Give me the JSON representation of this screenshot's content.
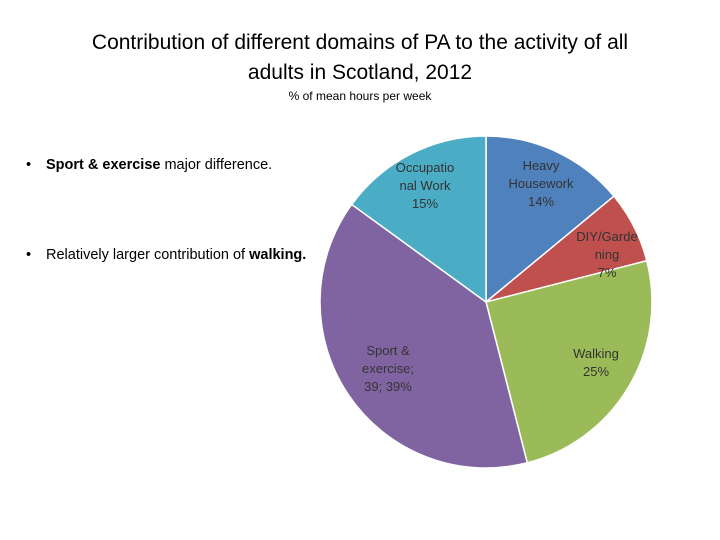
{
  "chart_data": {
    "type": "pie",
    "title": "Contribution of different domains of PA to the activity of all\nadults in Scotland, 2012",
    "subtitle": "% of mean hours per week",
    "categories": [
      "Heavy\nHousework",
      "DIY/Garde\nning",
      "Walking",
      "Sport &\nexercise;",
      "Occupatio\nnal Work"
    ],
    "values": [
      14,
      7,
      25,
      39,
      15
    ],
    "value_labels": [
      "14%",
      "7%",
      "25%",
      "39; 39%",
      "15%"
    ],
    "colors": [
      "#4f81bd",
      "#c0504d",
      "#9bbb59",
      "#8064a2",
      "#4bacc6"
    ]
  },
  "bullets": [
    [
      {
        "text": "Sport & exercise",
        "bold": true
      },
      {
        "text": " major difference.",
        "bold": false
      }
    ],
    [
      {
        "text": "Relatively larger contribution of ",
        "bold": false
      },
      {
        "text": "walking.",
        "bold": true
      }
    ]
  ]
}
